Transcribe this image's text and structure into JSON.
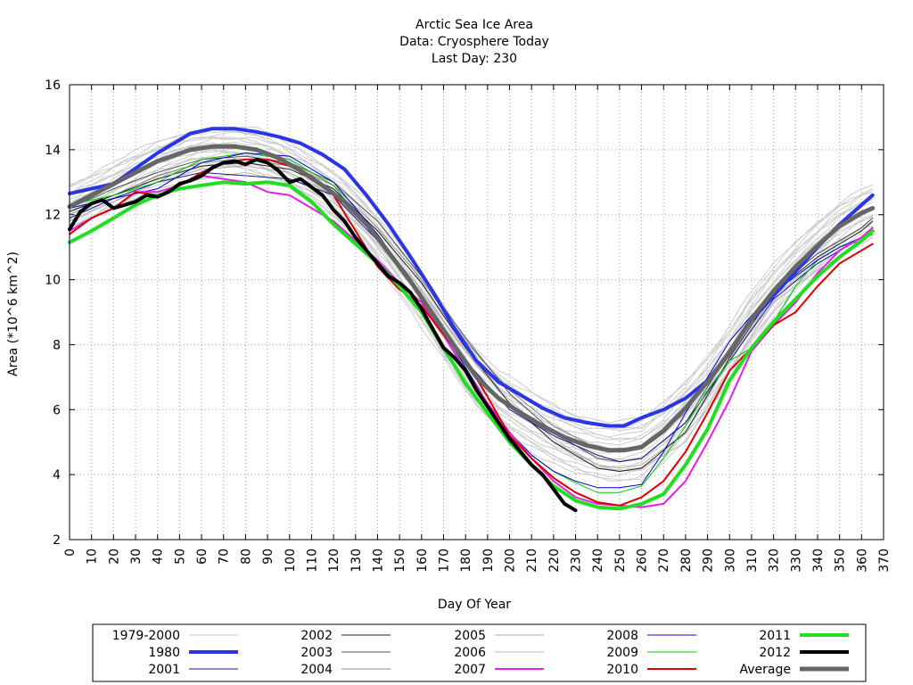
{
  "chart_data": {
    "type": "line",
    "title": [
      "Arctic Sea Ice Area",
      "Data: Cryosphere Today",
      "Last Day: 230"
    ],
    "xlabel": "Day Of Year",
    "ylabel": "Area (*10^6 km^2)",
    "xlim": [
      0,
      370
    ],
    "ylim": [
      2,
      16
    ],
    "xticks": [
      0,
      10,
      20,
      30,
      40,
      50,
      60,
      70,
      80,
      90,
      100,
      110,
      120,
      130,
      140,
      150,
      160,
      170,
      180,
      190,
      200,
      210,
      220,
      230,
      240,
      250,
      260,
      270,
      280,
      290,
      300,
      310,
      320,
      330,
      340,
      350,
      360,
      370
    ],
    "yticks": [
      2,
      4,
      6,
      8,
      10,
      12,
      14,
      16
    ],
    "grid": true,
    "legend_position": "bottom",
    "legend": [
      {
        "label": "1979-2000",
        "color": "#c8c8c8",
        "width": 1
      },
      {
        "label": "1980",
        "color": "#2a35e6",
        "width": 4
      },
      {
        "label": "2001",
        "color": "#1a1a9a",
        "width": 1
      },
      {
        "label": "2002",
        "color": "#222222",
        "width": 1
      },
      {
        "label": "2003",
        "color": "#555555",
        "width": 1
      },
      {
        "label": "2004",
        "color": "#888888",
        "width": 1
      },
      {
        "label": "2005",
        "color": "#aaaaaa",
        "width": 1
      },
      {
        "label": "2006",
        "color": "#bbbbbb",
        "width": 1
      },
      {
        "label": "2007",
        "color": "#e61ee6",
        "width": 2
      },
      {
        "label": "2008",
        "color": "#0000cc",
        "width": 1
      },
      {
        "label": "2009",
        "color": "#00cc00",
        "width": 1
      },
      {
        "label": "2010",
        "color": "#dd0000",
        "width": 2
      },
      {
        "label": "2011",
        "color": "#22dd22",
        "width": 4
      },
      {
        "label": "2012",
        "color": "#000000",
        "width": 4
      },
      {
        "label": "Average",
        "color": "#666666",
        "width": 5
      }
    ],
    "series": [
      {
        "name": "1980",
        "x": [
          0,
          20,
          40,
          55,
          65,
          75,
          85,
          95,
          105,
          115,
          125,
          135,
          145,
          155,
          165,
          175,
          185,
          195,
          205,
          215,
          225,
          235,
          245,
          252,
          260,
          270,
          280,
          290,
          300,
          310,
          320,
          330,
          340,
          350,
          360,
          365
        ],
        "y": [
          12.65,
          12.95,
          13.9,
          14.5,
          14.65,
          14.65,
          14.55,
          14.4,
          14.2,
          13.85,
          13.4,
          12.6,
          11.7,
          10.7,
          9.65,
          8.5,
          7.5,
          6.85,
          6.45,
          6.05,
          5.75,
          5.6,
          5.5,
          5.5,
          5.75,
          6.0,
          6.35,
          6.9,
          7.75,
          8.75,
          9.5,
          10.25,
          11.0,
          11.7,
          12.3,
          12.6
        ]
      },
      {
        "name": "Average",
        "x": [
          0,
          20,
          40,
          55,
          65,
          75,
          85,
          95,
          105,
          115,
          125,
          135,
          145,
          155,
          165,
          175,
          185,
          195,
          205,
          215,
          225,
          235,
          245,
          252,
          260,
          270,
          280,
          290,
          300,
          310,
          320,
          330,
          340,
          350,
          360,
          365
        ],
        "y": [
          12.25,
          12.95,
          13.65,
          14.0,
          14.1,
          14.1,
          14.0,
          13.75,
          13.35,
          12.9,
          12.4,
          11.7,
          10.85,
          9.95,
          8.95,
          7.95,
          7.0,
          6.35,
          5.9,
          5.5,
          5.15,
          4.9,
          4.75,
          4.75,
          4.85,
          5.35,
          6.05,
          6.85,
          7.75,
          8.8,
          9.65,
          10.4,
          11.05,
          11.65,
          12.05,
          12.2
        ]
      },
      {
        "name": "2001",
        "x": [
          0,
          20,
          40,
          60,
          80,
          100,
          120,
          140,
          160,
          180,
          200,
          220,
          240,
          250,
          260,
          280,
          300,
          320,
          340,
          360,
          365
        ],
        "y": [
          11.9,
          12.5,
          13.0,
          13.3,
          13.2,
          13.1,
          12.6,
          11.2,
          9.5,
          7.5,
          6.0,
          5.2,
          4.6,
          4.4,
          4.5,
          5.6,
          7.5,
          9.4,
          10.5,
          11.3,
          11.6
        ]
      },
      {
        "name": "2002",
        "x": [
          0,
          20,
          40,
          60,
          80,
          100,
          120,
          140,
          160,
          180,
          200,
          220,
          240,
          250,
          260,
          280,
          300,
          320,
          340,
          360,
          365
        ],
        "y": [
          12.1,
          12.6,
          13.1,
          13.5,
          13.6,
          13.4,
          12.8,
          11.5,
          9.9,
          7.9,
          6.2,
          5.0,
          4.2,
          4.1,
          4.2,
          5.3,
          7.6,
          9.6,
          10.7,
          11.5,
          11.8
        ]
      },
      {
        "name": "2003",
        "x": [
          0,
          20,
          40,
          60,
          80,
          100,
          120,
          140,
          160,
          180,
          200,
          220,
          240,
          250,
          260,
          280,
          300,
          320,
          340,
          360,
          365
        ],
        "y": [
          12.2,
          12.8,
          13.3,
          13.7,
          13.8,
          13.6,
          13.0,
          11.8,
          10.1,
          8.2,
          6.5,
          5.3,
          4.5,
          4.4,
          4.5,
          5.6,
          7.8,
          9.7,
          10.8,
          11.6,
          11.9
        ]
      },
      {
        "name": "2004",
        "x": [
          0,
          20,
          40,
          60,
          80,
          100,
          120,
          140,
          160,
          180,
          200,
          220,
          240,
          250,
          260,
          280,
          300,
          320,
          340,
          360,
          365
        ],
        "y": [
          12.0,
          12.6,
          13.2,
          13.6,
          13.7,
          13.5,
          12.9,
          11.6,
          10.0,
          8.1,
          6.6,
          5.5,
          4.8,
          4.7,
          4.9,
          5.9,
          7.9,
          9.7,
          10.8,
          11.6,
          11.9
        ]
      },
      {
        "name": "2005",
        "x": [
          0,
          20,
          40,
          60,
          80,
          100,
          120,
          140,
          160,
          180,
          200,
          220,
          240,
          250,
          260,
          280,
          300,
          320,
          340,
          360,
          365
        ],
        "y": [
          11.8,
          12.4,
          13.0,
          13.4,
          13.5,
          13.3,
          12.6,
          11.3,
          9.7,
          7.8,
          6.2,
          5.0,
          4.3,
          4.2,
          4.3,
          5.3,
          7.5,
          9.5,
          10.5,
          11.3,
          11.6
        ]
      },
      {
        "name": "2006",
        "x": [
          0,
          20,
          40,
          60,
          80,
          100,
          120,
          140,
          160,
          180,
          200,
          220,
          240,
          250,
          260,
          280,
          300,
          320,
          340,
          360,
          365
        ],
        "y": [
          11.6,
          12.2,
          12.8,
          13.1,
          13.3,
          13.0,
          12.4,
          11.1,
          9.6,
          7.8,
          6.3,
          5.1,
          4.3,
          4.1,
          4.2,
          5.0,
          7.2,
          9.3,
          10.3,
          11.1,
          11.3
        ]
      },
      {
        "name": "2007",
        "x": [
          0,
          10,
          20,
          30,
          40,
          50,
          60,
          70,
          80,
          90,
          100,
          110,
          120,
          130,
          140,
          150,
          160,
          170,
          180,
          190,
          200,
          210,
          220,
          230,
          240,
          250,
          260,
          270,
          280,
          290,
          300,
          310,
          320,
          330,
          340,
          350,
          360,
          365
        ],
        "y": [
          11.5,
          11.9,
          12.2,
          12.7,
          12.7,
          12.9,
          13.2,
          13.1,
          13.0,
          12.7,
          12.6,
          12.2,
          11.8,
          11.2,
          10.6,
          9.9,
          9.3,
          8.3,
          7.2,
          6.2,
          5.3,
          4.5,
          3.8,
          3.3,
          3.1,
          3.05,
          3.0,
          3.1,
          3.8,
          5.0,
          6.3,
          7.8,
          8.6,
          9.3,
          10.2,
          10.9,
          11.3,
          11.6
        ]
      },
      {
        "name": "2008",
        "x": [
          0,
          20,
          40,
          60,
          80,
          100,
          120,
          140,
          160,
          170,
          180,
          190,
          200,
          210,
          220,
          230,
          240,
          250,
          260,
          270,
          280,
          290,
          300,
          310,
          320,
          330,
          340,
          350,
          360,
          365
        ],
        "y": [
          12.2,
          12.5,
          12.8,
          13.6,
          13.9,
          13.8,
          13.0,
          11.4,
          9.5,
          8.4,
          7.3,
          6.2,
          5.3,
          4.6,
          4.1,
          3.8,
          3.6,
          3.6,
          3.7,
          4.7,
          5.9,
          7.0,
          8.1,
          8.9,
          9.6,
          10.1,
          10.6,
          11.0,
          11.3,
          11.6
        ]
      },
      {
        "name": "2009",
        "x": [
          0,
          20,
          40,
          60,
          80,
          100,
          120,
          140,
          160,
          170,
          180,
          190,
          200,
          210,
          220,
          230,
          240,
          250,
          260,
          270,
          280,
          290,
          300,
          310,
          320,
          330,
          340,
          350,
          360,
          365
        ],
        "y": [
          12.3,
          12.6,
          13.0,
          13.7,
          13.9,
          13.7,
          12.9,
          11.2,
          9.4,
          8.3,
          7.2,
          6.2,
          5.3,
          4.6,
          4.1,
          3.75,
          3.45,
          3.45,
          3.65,
          4.5,
          5.5,
          6.6,
          7.5,
          7.9,
          8.7,
          9.8,
          10.6,
          11.0,
          11.2,
          11.4
        ]
      },
      {
        "name": "2010",
        "x": [
          0,
          10,
          20,
          30,
          40,
          50,
          60,
          70,
          80,
          90,
          100,
          110,
          120,
          130,
          140,
          150,
          160,
          170,
          180,
          190,
          200,
          210,
          220,
          230,
          240,
          250,
          260,
          270,
          280,
          290,
          300,
          310,
          320,
          330,
          340,
          350,
          360,
          365
        ],
        "y": [
          11.4,
          11.9,
          12.2,
          12.7,
          12.6,
          12.9,
          13.3,
          13.6,
          13.7,
          13.7,
          13.5,
          13.2,
          12.6,
          11.5,
          10.4,
          9.7,
          9.2,
          8.3,
          7.5,
          6.4,
          5.2,
          4.5,
          3.9,
          3.45,
          3.15,
          3.05,
          3.3,
          3.8,
          4.7,
          5.9,
          7.2,
          7.9,
          8.6,
          9.0,
          9.8,
          10.5,
          10.9,
          11.1
        ]
      },
      {
        "name": "2011",
        "x": [
          0,
          10,
          20,
          30,
          40,
          50,
          60,
          70,
          80,
          90,
          100,
          110,
          120,
          130,
          140,
          150,
          160,
          170,
          180,
          190,
          200,
          210,
          220,
          230,
          240,
          250,
          260,
          270,
          280,
          290,
          300,
          310,
          320,
          330,
          340,
          350,
          360,
          365
        ],
        "y": [
          11.15,
          11.5,
          11.9,
          12.3,
          12.6,
          12.8,
          12.9,
          13.0,
          12.95,
          13.0,
          12.9,
          12.4,
          11.7,
          11.1,
          10.5,
          9.8,
          9.0,
          7.9,
          6.8,
          5.9,
          5.0,
          4.3,
          3.65,
          3.2,
          3.0,
          2.95,
          3.1,
          3.4,
          4.3,
          5.4,
          6.9,
          7.9,
          8.7,
          9.4,
          10.1,
          10.7,
          11.2,
          11.5
        ]
      },
      {
        "name": "2012",
        "x": [
          0,
          5,
          10,
          15,
          20,
          25,
          30,
          35,
          40,
          45,
          50,
          55,
          60,
          65,
          70,
          75,
          80,
          85,
          90,
          95,
          100,
          105,
          110,
          115,
          120,
          125,
          130,
          135,
          140,
          145,
          150,
          155,
          160,
          165,
          170,
          175,
          180,
          185,
          190,
          195,
          200,
          205,
          210,
          215,
          220,
          225,
          230
        ],
        "y": [
          11.55,
          12.1,
          12.35,
          12.45,
          12.2,
          12.3,
          12.4,
          12.6,
          12.55,
          12.7,
          12.95,
          13.05,
          13.2,
          13.45,
          13.6,
          13.65,
          13.55,
          13.7,
          13.6,
          13.35,
          13.0,
          13.1,
          12.85,
          12.6,
          12.15,
          11.8,
          11.3,
          10.9,
          10.5,
          10.1,
          9.9,
          9.6,
          9.1,
          8.5,
          7.9,
          7.6,
          7.2,
          6.6,
          6.1,
          5.6,
          5.1,
          4.7,
          4.3,
          4.0,
          3.55,
          3.1,
          2.9
        ]
      }
    ]
  },
  "legend_labels": {
    "l1979": "1979-2000",
    "l1980": "1980",
    "l2001": "2001",
    "l2002": "2002",
    "l2003": "2003",
    "l2004": "2004",
    "l2005": "2005",
    "l2006": "2006",
    "l2007": "2007",
    "l2008": "2008",
    "l2009": "2009",
    "l2010": "2010",
    "l2011": "2011",
    "l2012": "2012",
    "lavg": "Average"
  }
}
